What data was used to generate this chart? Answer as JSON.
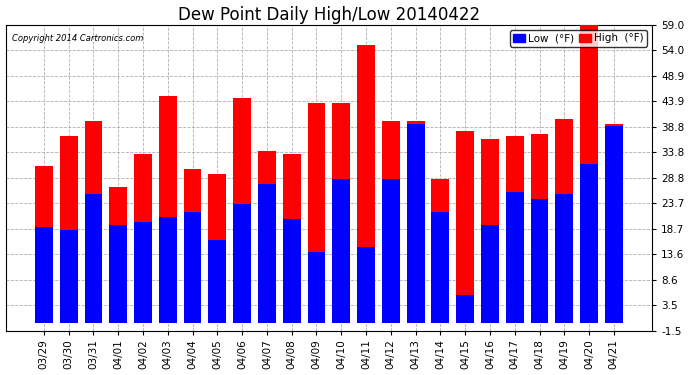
{
  "title": "Dew Point Daily High/Low 20140422",
  "copyright": "Copyright 2014 Cartronics.com",
  "dates": [
    "03/29",
    "03/30",
    "03/31",
    "04/01",
    "04/02",
    "04/03",
    "04/04",
    "04/05",
    "04/06",
    "04/07",
    "04/08",
    "04/09",
    "04/10",
    "04/11",
    "04/12",
    "04/13",
    "04/14",
    "04/15",
    "04/16",
    "04/17",
    "04/18",
    "04/19",
    "04/20",
    "04/21"
  ],
  "high_values": [
    31.0,
    37.0,
    40.0,
    27.0,
    33.5,
    45.0,
    30.5,
    29.5,
    44.5,
    34.0,
    33.5,
    43.5,
    43.5,
    55.0,
    40.0,
    40.0,
    28.5,
    38.0,
    36.5,
    37.0,
    37.5,
    40.5,
    59.0,
    39.5
  ],
  "low_values": [
    19.0,
    18.5,
    25.5,
    19.5,
    20.0,
    21.0,
    22.0,
    16.5,
    23.5,
    27.5,
    20.5,
    14.0,
    28.5,
    15.0,
    28.5,
    39.5,
    22.0,
    5.5,
    19.5,
    26.0,
    24.5,
    25.5,
    31.5,
    39.0
  ],
  "high_color": "#ff0000",
  "low_color": "#0000ff",
  "background_color": "#ffffff",
  "plot_bg_color": "#ffffff",
  "grid_color": "#b0b0b0",
  "ylim": [
    -1.5,
    59.0
  ],
  "yticks": [
    -1.5,
    3.5,
    8.6,
    13.6,
    18.7,
    23.7,
    28.8,
    33.8,
    38.8,
    43.9,
    48.9,
    54.0,
    59.0
  ],
  "bar_width": 0.72,
  "title_fontsize": 12,
  "tick_fontsize": 7.5,
  "legend_fontsize": 7.5,
  "figsize": [
    6.9,
    3.75
  ],
  "dpi": 100
}
